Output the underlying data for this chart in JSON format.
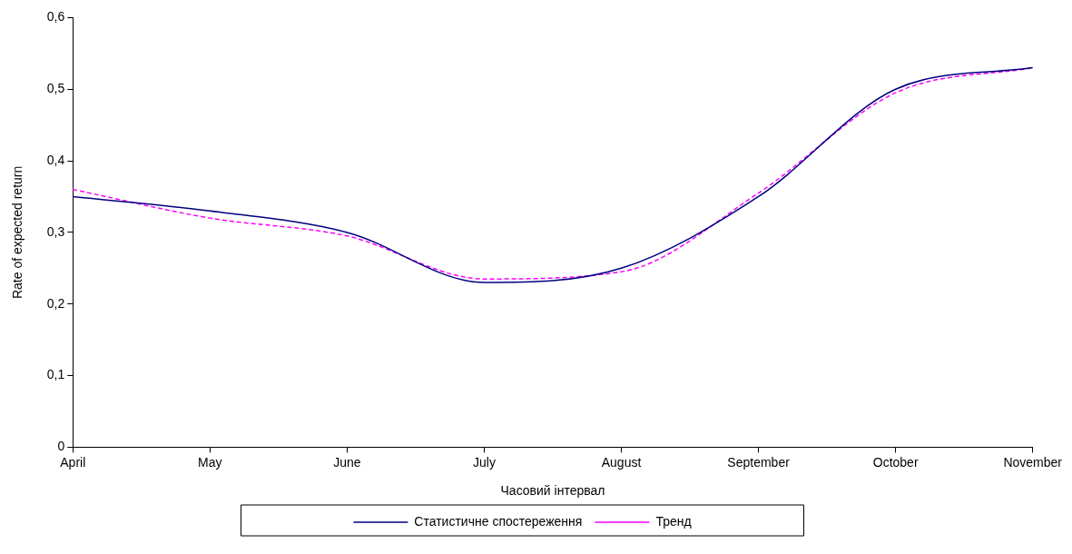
{
  "chart_data": {
    "type": "line",
    "xlabel": "Часовий інтервал",
    "ylabel": "Rate of expected return",
    "categories": [
      "April",
      "May",
      "June",
      "July",
      "August",
      "September",
      "October",
      "November"
    ],
    "series": [
      {
        "name": "Статистичне спостереження",
        "color": "#000080",
        "line_style": "solid",
        "values": [
          0.35,
          0.33,
          0.3,
          0.23,
          0.25,
          0.35,
          0.5,
          0.53
        ]
      },
      {
        "name": "Тренд",
        "color": "#ff00ff",
        "line_style": "dashed",
        "values": [
          0.36,
          0.32,
          0.295,
          0.235,
          0.245,
          0.355,
          0.495,
          0.53
        ]
      }
    ],
    "ylim": [
      0,
      0.6
    ],
    "yticks": [
      0,
      {
        "value": 0.1,
        "label": "0,1"
      },
      {
        "value": 0.2,
        "label": "0,2"
      },
      {
        "value": 0.3,
        "label": "0,3"
      },
      {
        "value": 0.4,
        "label": "0,4"
      },
      {
        "value": 0.5,
        "label": "0,5"
      },
      {
        "value": 0.6,
        "label": "0,6"
      }
    ],
    "grid": false,
    "legend": "bottom",
    "marker": "none"
  }
}
